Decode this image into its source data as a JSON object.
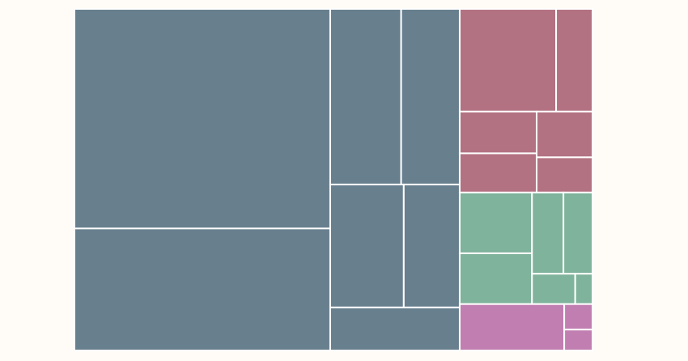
{
  "chart_data": {
    "type": "treemap",
    "groups": [
      {
        "color": "#687f8e",
        "values": [
          857,
          476,
          190,
          157,
          138,
          105,
          85
        ]
      },
      {
        "color": "#b37282",
        "values": [
          151,
          57,
          49,
          46,
          39,
          30
        ]
      },
      {
        "color": "#7fb39b",
        "values": [
          67,
          56,
          39,
          36,
          20,
          8
        ]
      },
      {
        "color": "#c17fb1",
        "values": [
          74,
          11,
          9
        ]
      }
    ]
  }
}
